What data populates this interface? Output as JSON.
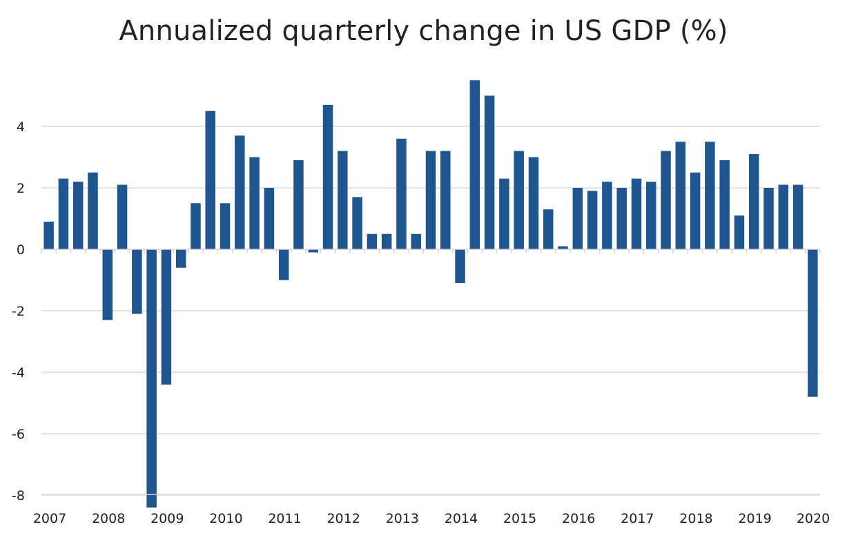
{
  "chart_data": {
    "type": "bar",
    "title": "Annualized quarterly change in US GDP (%)",
    "xlabel": "",
    "ylabel": "",
    "ylim": [
      -8,
      5.5
    ],
    "yticks": [
      4,
      2,
      0,
      -2,
      -4,
      -6,
      -8
    ],
    "ytick_labels": [
      "4",
      "2",
      "0",
      "-2",
      "-4",
      "-6",
      "-8"
    ],
    "year_labels": [
      "2007",
      "2008",
      "2009",
      "2010",
      "2011",
      "2012",
      "2013",
      "2014",
      "2015",
      "2016",
      "2017",
      "2018",
      "2019",
      "2020"
    ],
    "grid": true,
    "legend": false,
    "bar_color": "#1F568F",
    "categories": [
      "2007 Q1",
      "2007 Q2",
      "2007 Q3",
      "2007 Q4",
      "2008 Q1",
      "2008 Q2",
      "2008 Q3",
      "2008 Q4",
      "2009 Q1",
      "2009 Q2",
      "2009 Q3",
      "2009 Q4",
      "2010 Q1",
      "2010 Q2",
      "2010 Q3",
      "2010 Q4",
      "2011 Q1",
      "2011 Q2",
      "2011 Q3",
      "2011 Q4",
      "2012 Q1",
      "2012 Q2",
      "2012 Q3",
      "2012 Q4",
      "2013 Q1",
      "2013 Q2",
      "2013 Q3",
      "2013 Q4",
      "2014 Q1",
      "2014 Q2",
      "2014 Q3",
      "2014 Q4",
      "2015 Q1",
      "2015 Q2",
      "2015 Q3",
      "2015 Q4",
      "2016 Q1",
      "2016 Q2",
      "2016 Q3",
      "2016 Q4",
      "2017 Q1",
      "2017 Q2",
      "2017 Q3",
      "2017 Q4",
      "2018 Q1",
      "2018 Q2",
      "2018 Q3",
      "2018 Q4",
      "2019 Q1",
      "2019 Q2",
      "2019 Q3",
      "2019 Q4",
      "2020 Q1"
    ],
    "values": [
      0.9,
      2.3,
      2.2,
      2.5,
      -2.3,
      2.1,
      -2.1,
      -8.4,
      -4.4,
      -0.6,
      1.5,
      4.5,
      1.5,
      3.7,
      3.0,
      2.0,
      -1.0,
      2.9,
      -0.1,
      4.7,
      3.2,
      1.7,
      0.5,
      0.5,
      3.6,
      0.5,
      3.2,
      3.2,
      -1.1,
      5.5,
      5.0,
      2.3,
      3.2,
      3.0,
      1.3,
      0.1,
      2.0,
      1.9,
      2.2,
      2.0,
      2.3,
      2.2,
      3.2,
      3.5,
      2.5,
      3.5,
      2.9,
      1.1,
      3.1,
      2.0,
      2.1,
      2.1,
      -4.8
    ]
  }
}
